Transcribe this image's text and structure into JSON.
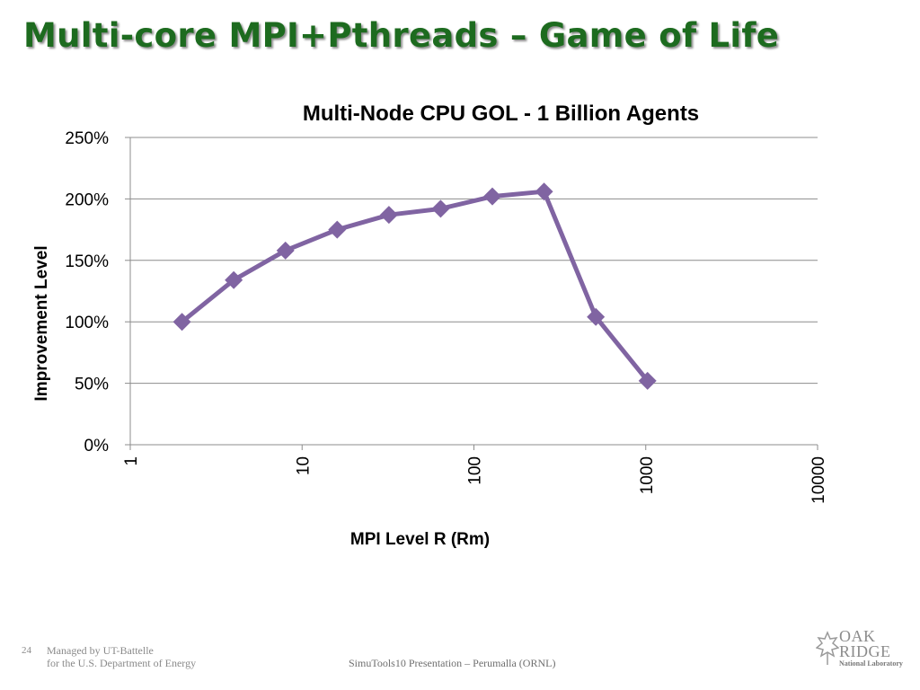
{
  "slide": {
    "title": "Multi-core MPI+Pthreads – Game of Life"
  },
  "chart_data": {
    "type": "line",
    "title": "Multi-Node CPU GOL - 1 Billion Agents",
    "xlabel": "MPI Level R (Rm)",
    "ylabel": "Improvement Level",
    "x_scale": "log",
    "xlim": [
      1,
      10000
    ],
    "ylim": [
      0,
      2.5
    ],
    "x_ticks": [
      "1",
      "10",
      "100",
      "1000",
      "10000"
    ],
    "y_ticks": [
      "0%",
      "50%",
      "100%",
      "150%",
      "200%",
      "250%"
    ],
    "grid": "horizontal",
    "legend": "none",
    "series": [
      {
        "color": "#8064a2",
        "marker": "diamond",
        "x": [
          2,
          4,
          8,
          16,
          32,
          64,
          128,
          256,
          512,
          1024
        ],
        "y": [
          1.0,
          1.34,
          1.58,
          1.75,
          1.87,
          1.92,
          2.02,
          2.06,
          1.04,
          0.52
        ]
      }
    ]
  },
  "footer": {
    "page_number": "24",
    "managed_line1": "Managed by UT-Battelle",
    "managed_line2": "for the U.S. Department of Energy",
    "presentation": "SimuTools10 Presentation – Perumalla (ORNL)",
    "logo_line1": "OAK",
    "logo_line2": "RIDGE",
    "logo_line3": "National Laboratory"
  }
}
